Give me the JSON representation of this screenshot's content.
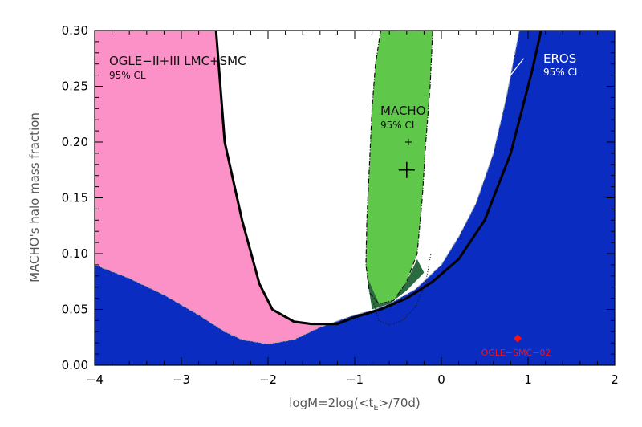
{
  "chart_data": {
    "type": "area",
    "xlabel": "logM=2log(<t",
    "xlabel_sub": "E",
    "xlabel_tail": ">/70d)",
    "ylabel": "MACHO's halo mass fraction",
    "xlim": [
      -4,
      2
    ],
    "ylim": [
      0,
      0.3
    ],
    "xticks": [
      -4,
      -3,
      -2,
      -1,
      0,
      1,
      2
    ],
    "xtick_labels": [
      "−4",
      "−3",
      "−2",
      "−1",
      "0",
      "1",
      "2"
    ],
    "yticks": [
      0,
      0.05,
      0.1,
      0.15,
      0.2,
      0.25,
      0.3
    ],
    "ytick_labels": [
      "0.00",
      "0.05",
      "0.10",
      "0.15",
      "0.20",
      "0.25",
      "0.30"
    ],
    "series": [
      {
        "name": "EROS",
        "label": "EROS",
        "sublabel": "95% CL",
        "color": "#1e9ff0",
        "boundary": [
          [
            -4.0,
            0.09
          ],
          [
            -3.6,
            0.078
          ],
          [
            -3.2,
            0.063
          ],
          [
            -2.8,
            0.045
          ],
          [
            -2.5,
            0.03
          ],
          [
            -2.3,
            0.023
          ],
          [
            -2.0,
            0.019
          ],
          [
            -1.7,
            0.023
          ],
          [
            -1.4,
            0.034
          ],
          [
            -1.0,
            0.045
          ],
          [
            -0.8,
            0.049
          ],
          [
            -0.6,
            0.055
          ],
          [
            -0.3,
            0.068
          ],
          [
            0.0,
            0.09
          ],
          [
            0.2,
            0.115
          ],
          [
            0.4,
            0.145
          ],
          [
            0.6,
            0.19
          ],
          [
            0.75,
            0.24
          ],
          [
            0.9,
            0.3
          ]
        ]
      },
      {
        "name": "OGLE-II+III LMC+SMC",
        "label": "OGLE−II+III LMC+SMC",
        "sublabel": "95% CL",
        "color": "#fb91c6",
        "boundary": [
          [
            -2.6,
            0.3
          ],
          [
            -2.5,
            0.2
          ],
          [
            -2.3,
            0.13
          ],
          [
            -2.1,
            0.073
          ],
          [
            -1.95,
            0.05
          ],
          [
            -1.7,
            0.039
          ],
          [
            -1.5,
            0.037
          ],
          [
            -1.2,
            0.037
          ],
          [
            -1.0,
            0.043
          ],
          [
            -0.7,
            0.05
          ],
          [
            -0.4,
            0.06
          ],
          [
            -0.1,
            0.075
          ],
          [
            0.2,
            0.095
          ],
          [
            0.5,
            0.13
          ],
          [
            0.8,
            0.19
          ],
          [
            1.05,
            0.265
          ],
          [
            1.15,
            0.3
          ]
        ]
      },
      {
        "name": "MACHO",
        "label": "MACHO",
        "sublabel": "95% CL",
        "color": "#5fc84a",
        "outline": [
          [
            -0.7,
            0.3
          ],
          [
            -0.1,
            0.3
          ],
          [
            -0.13,
            0.25
          ],
          [
            -0.18,
            0.2
          ],
          [
            -0.22,
            0.15
          ],
          [
            -0.28,
            0.1
          ],
          [
            -0.4,
            0.075
          ],
          [
            -0.55,
            0.058
          ],
          [
            -0.72,
            0.055
          ],
          [
            -0.83,
            0.065
          ],
          [
            -0.87,
            0.09
          ],
          [
            -0.86,
            0.13
          ],
          [
            -0.83,
            0.18
          ],
          [
            -0.8,
            0.23
          ],
          [
            -0.76,
            0.27
          ]
        ],
        "best_fit": {
          "x": -0.4,
          "y": 0.175
        },
        "secondary_marker": {
          "x": -0.38,
          "y": 0.2
        }
      }
    ],
    "points": [
      {
        "name": "OGLE-SMC-02",
        "label": "OGLE−SMC−02",
        "x": 0.88,
        "y": 0.024,
        "color": "#ff1010"
      }
    ],
    "background_color": "#0a2cc0",
    "legend": "none",
    "grid": false
  }
}
